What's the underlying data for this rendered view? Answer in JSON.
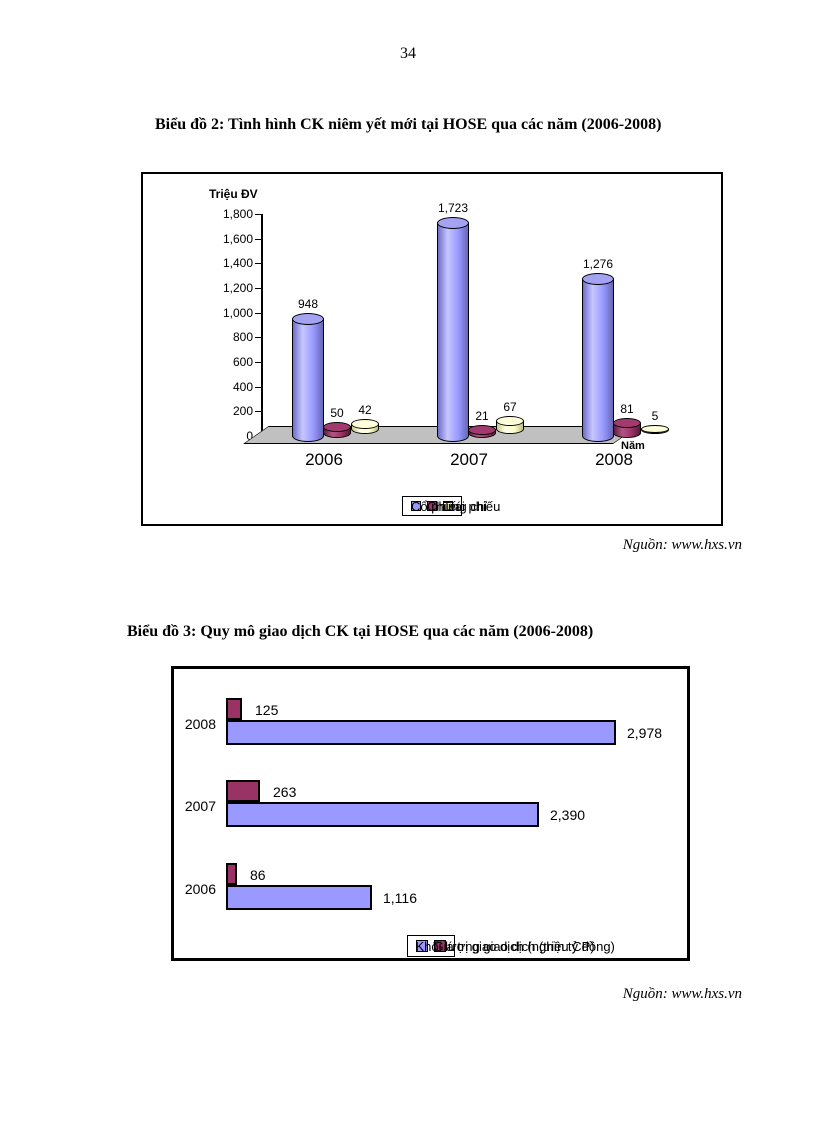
{
  "page": {
    "number": "34"
  },
  "figures": [
    {
      "title": "Biểu đồ 2: Tình hình CK niêm yết mới tại HOSE qua các năm (2006-2008)",
      "source": "Nguồn: www.hxs.vn"
    },
    {
      "title": "Biểu đồ 3: Quy mô giao dịch CK tại HOSE qua các năm (2006-2008)",
      "source": "Nguồn: www.hxs.vn"
    }
  ],
  "chart_data": [
    {
      "type": "bar",
      "subtype": "3d-cylinder-column",
      "title": "Biểu đồ 2: Tình hình CK niêm yết mới tại HOSE qua các năm (2006-2008)",
      "unit_label": "Triệu ĐV",
      "xlabel": "Năm",
      "ylim": [
        0,
        1800
      ],
      "y_tick_labels": [
        "1,800",
        "1,600",
        "1,400",
        "1,200",
        "1,000",
        "800",
        "600",
        "400",
        "200",
        "0"
      ],
      "grid": false,
      "legend_position": "bottom",
      "categories": [
        "2006",
        "2007",
        "2008"
      ],
      "series": [
        {
          "name": "Cổ phiếu",
          "color": "#9999FF",
          "values": [
            948,
            1723,
            1276
          ],
          "labels": [
            "948",
            "1,723",
            "1,276"
          ]
        },
        {
          "name": "Chứng chỉ",
          "color": "#993366",
          "values": [
            50,
            21,
            81
          ],
          "labels": [
            "50",
            "21",
            "81"
          ]
        },
        {
          "name": "Trái phiếu",
          "color": "#FFFFCC",
          "values": [
            42,
            67,
            5
          ],
          "labels": [
            "42",
            "67",
            "5"
          ]
        }
      ]
    },
    {
      "type": "bar",
      "subtype": "horizontal",
      "title": "Biểu đồ 3: Quy mô giao dịch CK tại HOSE qua các năm (2006-2008)",
      "grid": false,
      "legend_position": "bottom",
      "categories": [
        "2008",
        "2007",
        "2006"
      ],
      "series": [
        {
          "name": "Khối lượng giao dịch (triệu CP)",
          "color": "#9999FF",
          "values": [
            2978,
            2390,
            1116
          ],
          "labels": [
            "2,978",
            "2,390",
            "1,116"
          ]
        },
        {
          "name": "Giá trị giao dịch (nghìn tỷ đồng)",
          "color": "#993366",
          "values": [
            125,
            263,
            86
          ],
          "labels": [
            "125",
            "263",
            "86"
          ]
        }
      ]
    }
  ],
  "colors": {
    "series_purple": "#9999FF",
    "series_maroon": "#993366",
    "series_yellow": "#FFFFCC",
    "floor_gray": "#C0C0C0"
  }
}
